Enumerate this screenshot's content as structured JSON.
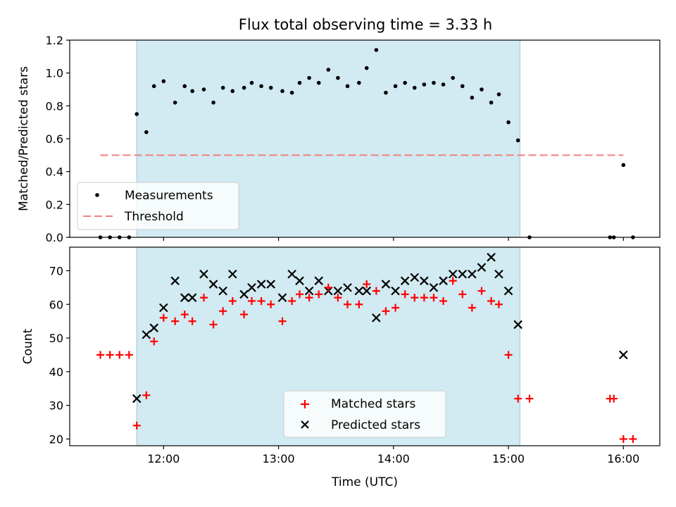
{
  "chart_data": [
    {
      "type": "scatter",
      "title": "Flux total observing time = 3.33 h",
      "xlabel": "",
      "ylabel": "Matched/Predicted stars",
      "ylim": [
        0,
        1.2
      ],
      "yticks": [
        "0.0",
        "0.2",
        "0.4",
        "0.6",
        "0.8",
        "1.0",
        "1.2"
      ],
      "xlim": [
        "11:11",
        "16:19"
      ],
      "shaded_span": [
        "11:46",
        "15:06"
      ],
      "shade_color": "#add8e6",
      "legend_position": "lower left",
      "series": [
        {
          "name": "Measurements",
          "color": "#000000",
          "marker": "dot",
          "x": [
            "11:27",
            "11:32",
            "11:37",
            "11:42",
            "11:46",
            "11:51",
            "11:55",
            "12:00",
            "12:06",
            "12:11",
            "12:15",
            "12:21",
            "12:26",
            "12:31",
            "12:36",
            "12:42",
            "12:46",
            "12:51",
            "12:56",
            "13:02",
            "13:07",
            "13:11",
            "13:16",
            "13:21",
            "13:26",
            "13:31",
            "13:36",
            "13:42",
            "13:46",
            "13:51",
            "13:56",
            "14:01",
            "14:06",
            "14:11",
            "14:16",
            "14:21",
            "14:26",
            "14:31",
            "14:36",
            "14:41",
            "14:46",
            "14:51",
            "14:55",
            "15:00",
            "15:05",
            "15:11",
            "15:53",
            "15:55",
            "16:00",
            "16:05"
          ],
          "values": [
            0.0,
            0.0,
            0.0,
            0.0,
            0.75,
            0.64,
            0.92,
            0.95,
            0.82,
            0.92,
            0.89,
            0.9,
            0.82,
            0.91,
            0.89,
            0.91,
            0.94,
            0.92,
            0.91,
            0.89,
            0.88,
            0.94,
            0.97,
            0.94,
            1.02,
            0.97,
            0.92,
            0.94,
            1.03,
            1.14,
            0.88,
            0.92,
            0.94,
            0.91,
            0.93,
            0.94,
            0.93,
            0.97,
            0.92,
            0.85,
            0.9,
            0.82,
            0.87,
            0.7,
            0.59,
            0.0,
            0.0,
            0.0,
            0.44,
            0.0
          ]
        },
        {
          "name": "Threshold",
          "color": "#f08080",
          "line": "dashed",
          "x": [
            "11:27",
            "16:00"
          ],
          "values": [
            0.5,
            0.5
          ]
        }
      ]
    },
    {
      "type": "scatter",
      "title": "",
      "xlabel": "Time (UTC)",
      "ylabel": "Count",
      "ylim": [
        18,
        77
      ],
      "yticks": [
        "20",
        "30",
        "40",
        "50",
        "60",
        "70"
      ],
      "xticks": [
        "12:00",
        "13:00",
        "14:00",
        "15:00",
        "16:00"
      ],
      "xlim": [
        "11:11",
        "16:19"
      ],
      "shaded_span": [
        "11:46",
        "15:06"
      ],
      "shade_color": "#add8e6",
      "legend_position": "lower center",
      "series": [
        {
          "name": "Matched stars",
          "color": "#ff0000",
          "marker": "plus",
          "x": [
            "11:27",
            "11:32",
            "11:37",
            "11:42",
            "11:46",
            "11:51",
            "11:55",
            "12:00",
            "12:06",
            "12:11",
            "12:15",
            "12:21",
            "12:26",
            "12:31",
            "12:36",
            "12:42",
            "12:46",
            "12:51",
            "12:56",
            "13:02",
            "13:07",
            "13:11",
            "13:16",
            "13:21",
            "13:26",
            "13:31",
            "13:36",
            "13:42",
            "13:46",
            "13:51",
            "13:56",
            "14:01",
            "14:06",
            "14:11",
            "14:16",
            "14:21",
            "14:26",
            "14:31",
            "14:36",
            "14:41",
            "14:46",
            "14:51",
            "14:55",
            "15:00",
            "15:05",
            "15:11",
            "15:53",
            "15:55",
            "16:00",
            "16:05"
          ],
          "values": [
            45,
            45,
            45,
            45,
            24,
            33,
            49,
            56,
            55,
            57,
            55,
            62,
            54,
            58,
            61,
            57,
            61,
            61,
            60,
            55,
            61,
            63,
            62,
            63,
            65,
            62,
            60,
            60,
            66,
            64,
            58,
            59,
            63,
            62,
            62,
            62,
            61,
            67,
            63,
            59,
            64,
            61,
            60,
            45,
            32,
            32,
            32,
            32,
            20,
            20
          ]
        },
        {
          "name": "Predicted stars",
          "color": "#000000",
          "marker": "x",
          "x": [
            "11:46",
            "11:51",
            "11:55",
            "12:00",
            "12:06",
            "12:11",
            "12:15",
            "12:21",
            "12:26",
            "12:31",
            "12:36",
            "12:42",
            "12:46",
            "12:51",
            "12:56",
            "13:02",
            "13:07",
            "13:11",
            "13:16",
            "13:21",
            "13:26",
            "13:31",
            "13:36",
            "13:42",
            "13:46",
            "13:51",
            "13:56",
            "14:01",
            "14:06",
            "14:11",
            "14:16",
            "14:21",
            "14:26",
            "14:31",
            "14:36",
            "14:41",
            "14:46",
            "14:51",
            "14:55",
            "15:00",
            "15:05",
            "16:00"
          ],
          "values": [
            32,
            51,
            53,
            59,
            67,
            62,
            62,
            69,
            66,
            64,
            69,
            63,
            65,
            66,
            66,
            62,
            69,
            67,
            64,
            67,
            64,
            64,
            65,
            64,
            64,
            56,
            66,
            64,
            67,
            68,
            67,
            65,
            67,
            69,
            69,
            69,
            71,
            74,
            69,
            64,
            54,
            45
          ]
        }
      ]
    }
  ]
}
